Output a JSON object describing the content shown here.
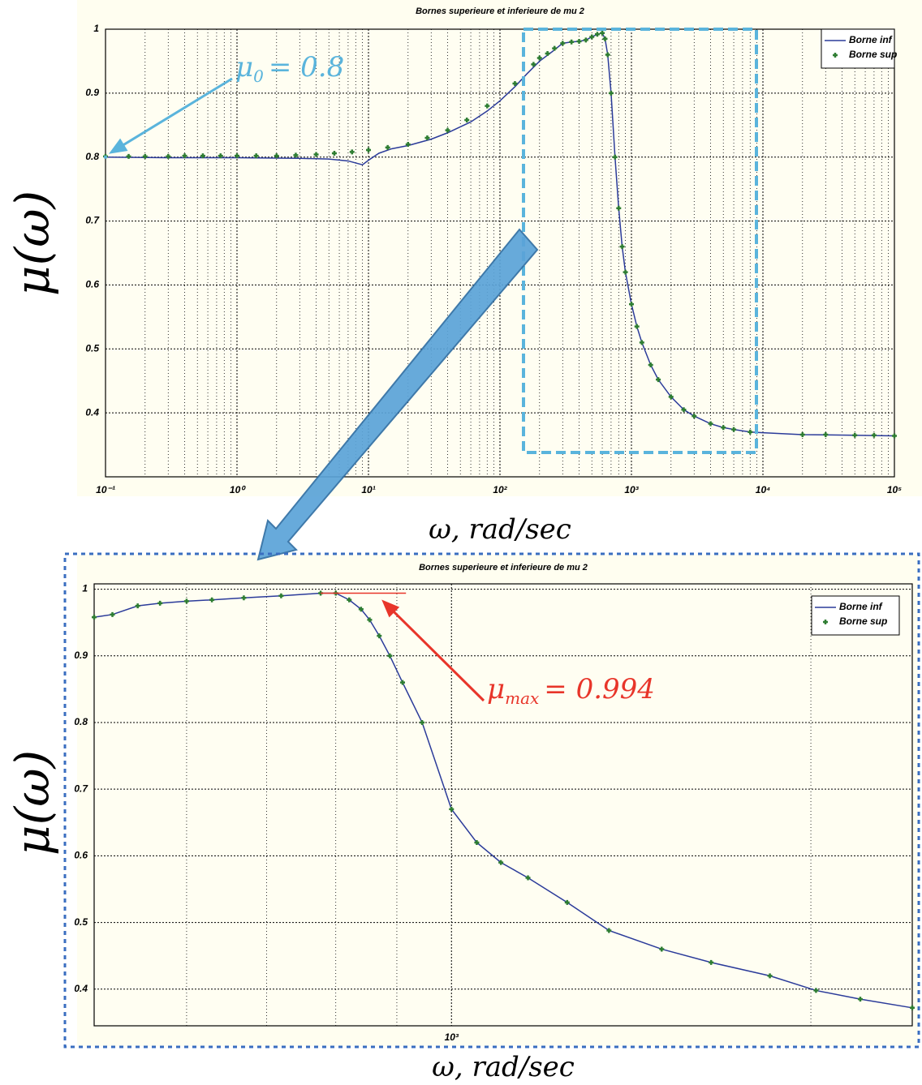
{
  "chart_data": [
    {
      "type": "line",
      "title": "Bornes superieure et inferieure de mu 2",
      "xlabel": "ω, rad/sec",
      "ylabel": "μ(ω)",
      "xscale": "log",
      "xlim": [
        0.1,
        100000
      ],
      "ylim": [
        0.3,
        1
      ],
      "xticks": [
        {
          "value": 0.1,
          "label": "10⁻¹"
        },
        {
          "value": 1,
          "label": "10⁰"
        },
        {
          "value": 10,
          "label": "10¹"
        },
        {
          "value": 100,
          "label": "10²"
        },
        {
          "value": 1000,
          "label": "10³"
        },
        {
          "value": 10000,
          "label": "10⁴"
        },
        {
          "value": 100000,
          "label": "10⁵"
        }
      ],
      "xminor": [
        0.2,
        0.3,
        0.4,
        0.5,
        0.6,
        0.7,
        0.8,
        0.9,
        2,
        3,
        4,
        5,
        6,
        7,
        8,
        9,
        20,
        30,
        40,
        50,
        60,
        70,
        80,
        90,
        200,
        300,
        400,
        500,
        600,
        700,
        800,
        900,
        2000,
        3000,
        4000,
        5000,
        6000,
        7000,
        8000,
        9000,
        20000,
        30000,
        40000,
        50000,
        60000,
        70000,
        80000,
        90000
      ],
      "yticks": [
        0.4,
        0.5,
        0.6,
        0.7,
        0.8,
        0.9,
        1
      ],
      "grid": true,
      "legend": "upper right",
      "series": [
        {
          "name": "Borne inf",
          "color": "#2b3b9a",
          "style": "line",
          "x": [
            0.1,
            0.3,
            1,
            3,
            5,
            7,
            9,
            10,
            12,
            15,
            20,
            30,
            40,
            60,
            80,
            100,
            130,
            160,
            200,
            250,
            300,
            350,
            400,
            450,
            500,
            550,
            600,
            630,
            660,
            700,
            750,
            800,
            850,
            900,
            1000,
            1100,
            1200,
            1400,
            1600,
            2000,
            2500,
            3000,
            4000,
            5000,
            6000,
            8000,
            10000,
            20000,
            50000,
            100000
          ],
          "values": [
            0.8,
            0.799,
            0.799,
            0.798,
            0.797,
            0.794,
            0.788,
            0.795,
            0.806,
            0.813,
            0.818,
            0.828,
            0.838,
            0.855,
            0.872,
            0.888,
            0.91,
            0.93,
            0.95,
            0.965,
            0.978,
            0.98,
            0.981,
            0.983,
            0.988,
            0.992,
            0.994,
            0.985,
            0.96,
            0.9,
            0.8,
            0.72,
            0.66,
            0.62,
            0.57,
            0.535,
            0.51,
            0.475,
            0.452,
            0.425,
            0.405,
            0.395,
            0.383,
            0.377,
            0.374,
            0.37,
            0.369,
            0.366,
            0.365,
            0.364
          ]
        },
        {
          "name": "Borne sup",
          "color": "#2e7d32",
          "style": "markers",
          "x": [
            0.1,
            0.15,
            0.2,
            0.3,
            0.4,
            0.55,
            0.75,
            1,
            1.4,
            2,
            2.8,
            4,
            5.5,
            7.5,
            10,
            14,
            20,
            28,
            40,
            56,
            80,
            130,
            180,
            200,
            230,
            260,
            300,
            350,
            400,
            450,
            500,
            550,
            600,
            630,
            660,
            700,
            750,
            800,
            850,
            900,
            1000,
            1100,
            1200,
            1400,
            1600,
            2000,
            2500,
            3000,
            4000,
            5000,
            6000,
            8000,
            20000,
            30000,
            50000,
            70000,
            100000
          ],
          "values": [
            0.801,
            0.801,
            0.801,
            0.801,
            0.802,
            0.802,
            0.802,
            0.802,
            0.802,
            0.802,
            0.803,
            0.804,
            0.806,
            0.808,
            0.811,
            0.815,
            0.82,
            0.83,
            0.842,
            0.858,
            0.88,
            0.915,
            0.945,
            0.955,
            0.962,
            0.97,
            0.978,
            0.98,
            0.981,
            0.983,
            0.988,
            0.992,
            0.994,
            0.985,
            0.96,
            0.9,
            0.8,
            0.72,
            0.66,
            0.62,
            0.57,
            0.535,
            0.51,
            0.475,
            0.452,
            0.425,
            0.405,
            0.395,
            0.383,
            0.377,
            0.374,
            0.37,
            0.366,
            0.366,
            0.365,
            0.365,
            0.364
          ]
        }
      ],
      "annotation": {
        "text": "μ",
        "subscript": "0",
        "rest": "= 0.8",
        "x": 0.1,
        "y": 0.8,
        "color": "#5ab4dc"
      }
    },
    {
      "type": "line",
      "title": "Bornes superieure et inferieure de mu 2",
      "xlabel": "ω, rad/sec",
      "ylabel": "μ(ω)",
      "xscale": "log",
      "xlim": [
        502,
        2432
      ],
      "ylim": [
        0.345,
        1.008
      ],
      "xticks": [
        {
          "value": 1000,
          "label": "10³"
        }
      ],
      "xminor": [
        600,
        700,
        800,
        900,
        2000
      ],
      "yticks": [
        0.4,
        0.5,
        0.6,
        0.7,
        0.8,
        0.9,
        1
      ],
      "grid": true,
      "legend": "upper right",
      "series": [
        {
          "name": "Borne inf",
          "color": "#2b3b9a",
          "style": "line",
          "x": [
            502,
            520,
            546,
            570,
            600,
            630,
            670,
            720,
            777,
            800,
            821,
            840,
            854,
            870,
            888,
            910,
            945,
            1000,
            1050,
            1100,
            1159,
            1250,
            1355,
            1500,
            1650,
            1848,
            2020,
            2200,
            2432
          ],
          "values": [
            0.958,
            0.962,
            0.975,
            0.979,
            0.982,
            0.984,
            0.987,
            0.99,
            0.994,
            0.994,
            0.984,
            0.97,
            0.954,
            0.93,
            0.9,
            0.86,
            0.8,
            0.67,
            0.62,
            0.59,
            0.567,
            0.53,
            0.488,
            0.46,
            0.44,
            0.42,
            0.398,
            0.385,
            0.372
          ]
        },
        {
          "name": "Borne sup",
          "color": "#2e7d32",
          "style": "markers",
          "x": [
            502,
            520,
            546,
            570,
            600,
            630,
            670,
            720,
            777,
            800,
            821,
            840,
            854,
            870,
            888,
            910,
            945,
            1000,
            1050,
            1100,
            1159,
            1250,
            1355,
            1500,
            1650,
            1848,
            2020,
            2200,
            2432
          ],
          "values": [
            0.958,
            0.962,
            0.975,
            0.979,
            0.982,
            0.984,
            0.987,
            0.99,
            0.994,
            0.994,
            0.984,
            0.97,
            0.954,
            0.93,
            0.9,
            0.86,
            0.8,
            0.67,
            0.62,
            0.59,
            0.567,
            0.53,
            0.488,
            0.46,
            0.44,
            0.42,
            0.398,
            0.385,
            0.372
          ]
        }
      ],
      "annotation": {
        "text": "μ",
        "subscript": "max",
        "rest": "= 0.994",
        "y": 0.994,
        "x": [
          777,
          916
        ],
        "color": "#e8352a"
      }
    }
  ]
}
